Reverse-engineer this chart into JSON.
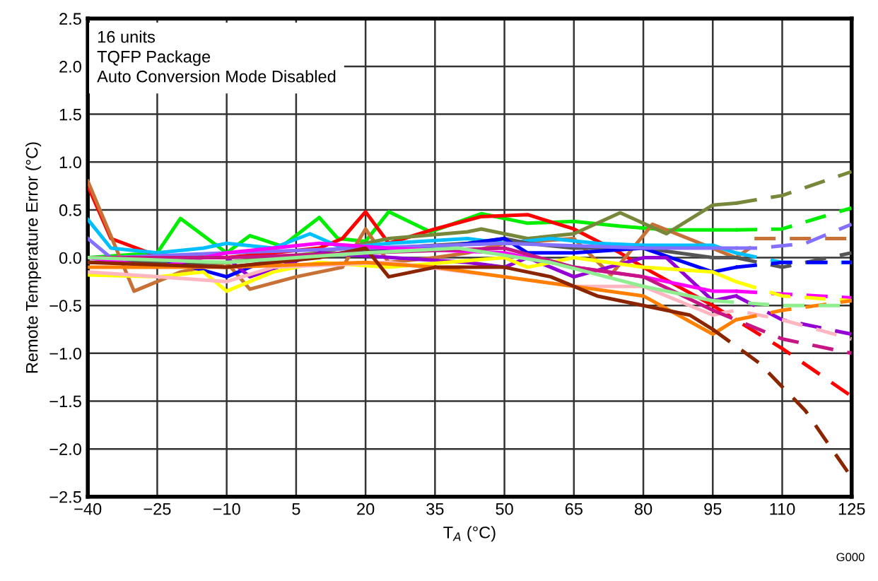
{
  "chart_data": {
    "type": "line",
    "xlabel": "T$_{A}$ (°C)",
    "ylabel": "Remote Temperature Error (°C)",
    "annotations": [
      "16 units\nTQFP Package\nAuto Conversion Mode Disabled",
      "G000"
    ],
    "xlim": [
      -40,
      125
    ],
    "ylim": [
      -2.5,
      2.5
    ],
    "xticks": [
      {
        "value": -40,
        "label": "−40"
      },
      {
        "value": -25,
        "label": "−25"
      },
      {
        "value": -10,
        "label": "−10"
      },
      5,
      20,
      35,
      50,
      65,
      80,
      95,
      110,
      125
    ],
    "yticks": [
      {
        "value": -2.5,
        "label": "−2.5"
      },
      {
        "value": -2.0,
        "label": "−2.0"
      },
      {
        "value": -1.5,
        "label": "−1.5"
      },
      {
        "value": -1.0,
        "label": "−1.0"
      },
      {
        "value": -0.5,
        "label": "−0.5"
      },
      {
        "value": 0,
        "label": "0.0"
      },
      {
        "value": 0.5,
        "label": "0.5"
      },
      {
        "value": 1.0,
        "label": "1.0"
      },
      {
        "value": 1.5,
        "label": "1.5"
      },
      {
        "value": 2.0,
        "label": "2.0"
      },
      {
        "value": 2.5,
        "label": "2.5"
      }
    ],
    "grid": true,
    "marker": "none",
    "legend": false,
    "series": [
      {
        "color": "#00ee00",
        "line_style": "solid",
        "x": [
          -40,
          -25,
          -20,
          -10,
          -5,
          2,
          10,
          14,
          20,
          25,
          34,
          45,
          55,
          65,
          75,
          85,
          100
        ],
        "values": [
          0.0,
          0.05,
          0.41,
          0.05,
          0.23,
          0.12,
          0.42,
          0.2,
          0.17,
          0.48,
          0.27,
          0.46,
          0.36,
          0.38,
          0.33,
          0.29,
          0.29
        ]
      },
      {
        "color": "#00ee00",
        "line_style": "dashed",
        "x": [
          100,
          110,
          125
        ],
        "values": [
          0.29,
          0.3,
          0.52
        ]
      },
      {
        "color": "#ff0000",
        "line_style": "solid",
        "x": [
          -40,
          -35,
          -25,
          -10,
          0,
          10,
          15,
          20,
          25,
          35,
          45,
          55,
          65,
          75,
          80,
          95
        ],
        "values": [
          0.75,
          0.2,
          0.02,
          0.0,
          0.05,
          0.1,
          0.2,
          0.48,
          0.15,
          0.3,
          0.43,
          0.45,
          0.3,
          0.05,
          -0.1,
          -0.5
        ]
      },
      {
        "color": "#ff0000",
        "line_style": "dashed",
        "x": [
          95,
          100,
          110,
          125
        ],
        "values": [
          -0.5,
          -0.65,
          -0.95,
          -1.45
        ]
      },
      {
        "color": "#c87137",
        "line_style": "solid",
        "x": [
          -40,
          -30,
          -20,
          -10,
          -5,
          5,
          15,
          20,
          25,
          35,
          42,
          50,
          65,
          73,
          82,
          100,
          103
        ],
        "values": [
          0.8,
          -0.35,
          -0.15,
          -0.05,
          -0.33,
          -0.2,
          -0.1,
          0.3,
          -0.05,
          0.0,
          0.05,
          0.15,
          0.2,
          -0.18,
          0.35,
          0.0,
          0.1
        ]
      },
      {
        "color": "#c87137",
        "line_style": "dashed",
        "x": [
          104,
          125
        ],
        "values": [
          0.2,
          0.2
        ]
      },
      {
        "color": "#77883a",
        "line_style": "solid",
        "x": [
          -40,
          -10,
          10,
          25,
          42,
          45,
          55,
          65,
          75,
          85,
          95,
          100
        ],
        "values": [
          -0.05,
          -0.05,
          0.05,
          0.2,
          0.27,
          0.3,
          0.2,
          0.25,
          0.47,
          0.25,
          0.55,
          0.57
        ]
      },
      {
        "color": "#77883a",
        "line_style": "dashed",
        "x": [
          100,
          110,
          125
        ],
        "values": [
          0.57,
          0.65,
          0.9
        ]
      },
      {
        "color": "#00bfff",
        "line_style": "solid",
        "x": [
          -40,
          -35,
          -25,
          -15,
          -10,
          0,
          8,
          15,
          25,
          42,
          50,
          60,
          70,
          80,
          95,
          100
        ],
        "values": [
          0.4,
          0.1,
          0.05,
          0.1,
          0.15,
          0.1,
          0.25,
          0.1,
          0.15,
          0.2,
          0.15,
          0.2,
          0.15,
          0.13,
          0.13,
          0.05
        ]
      },
      {
        "color": "#00bfff",
        "line_style": "dashed",
        "x": [
          100,
          110,
          125
        ],
        "values": [
          0.05,
          -0.05,
          -0.05
        ]
      },
      {
        "color": "#555555",
        "line_style": "solid",
        "x": [
          -40,
          -25,
          -10,
          0,
          15,
          25,
          42,
          50,
          55,
          65,
          80,
          95,
          100
        ],
        "values": [
          -0.05,
          -0.05,
          -0.1,
          -0.05,
          0.05,
          0.1,
          0.15,
          0.2,
          0.15,
          0.1,
          0.1,
          0.0,
          0.0
        ]
      },
      {
        "color": "#555555",
        "line_style": "dashed",
        "x": [
          100,
          110,
          125
        ],
        "values": [
          0.0,
          -0.1,
          0.05
        ]
      },
      {
        "color": "#0000ff",
        "line_style": "solid",
        "x": [
          -40,
          -25,
          -10,
          0,
          20,
          35,
          50,
          55,
          65,
          80,
          95,
          100
        ],
        "values": [
          0.0,
          0.0,
          -0.2,
          0.0,
          0.05,
          0.1,
          0.2,
          0.05,
          0.05,
          0.1,
          -0.15,
          -0.1
        ]
      },
      {
        "color": "#0000ff",
        "line_style": "dashed",
        "x": [
          100,
          110,
          125
        ],
        "values": [
          -0.1,
          -0.05,
          -0.05
        ]
      },
      {
        "color": "#8470ff",
        "line_style": "solid",
        "x": [
          -40,
          -35,
          -10,
          20,
          50,
          80,
          100
        ],
        "values": [
          0.2,
          0.0,
          0.05,
          0.1,
          0.15,
          0.1,
          0.1
        ]
      },
      {
        "color": "#8470ff",
        "line_style": "dashed",
        "x": [
          100,
          105,
          115,
          125
        ],
        "values": [
          0.1,
          0.1,
          0.15,
          0.35
        ]
      },
      {
        "color": "#9400d3",
        "line_style": "solid",
        "x": [
          -40,
          -10,
          -5,
          10,
          42,
          50,
          55,
          65,
          80,
          85,
          95,
          100
        ],
        "values": [
          0.0,
          0.0,
          -0.2,
          0.05,
          -0.05,
          -0.1,
          0.0,
          -0.2,
          0.0,
          0.0,
          -0.45,
          -0.4
        ]
      },
      {
        "color": "#9400d3",
        "line_style": "dashed",
        "x": [
          100,
          110,
          125
        ],
        "values": [
          -0.4,
          -0.65,
          -0.8
        ]
      },
      {
        "color": "#ff00ff",
        "line_style": "solid",
        "x": [
          -40,
          -25,
          -10,
          10,
          25,
          50,
          65,
          80,
          95,
          100
        ],
        "values": [
          0.0,
          -0.1,
          0.05,
          0.15,
          0.1,
          0.05,
          -0.1,
          -0.2,
          -0.35,
          -0.35
        ]
      },
      {
        "color": "#ff00ff",
        "line_style": "dashed",
        "x": [
          100,
          110,
          125
        ],
        "values": [
          -0.35,
          -0.38,
          -0.42
        ]
      },
      {
        "color": "#ffff00",
        "line_style": "solid",
        "x": [
          -40,
          -25,
          -15,
          -10,
          0,
          10,
          25,
          50,
          55,
          65,
          80,
          95,
          100
        ],
        "values": [
          -0.18,
          -0.2,
          -0.15,
          -0.35,
          -0.15,
          -0.05,
          -0.1,
          0.0,
          -0.1,
          0.0,
          -0.1,
          -0.15,
          -0.25
        ]
      },
      {
        "color": "#ffff00",
        "line_style": "dashed",
        "x": [
          100,
          110,
          125
        ],
        "values": [
          -0.25,
          -0.4,
          -0.45
        ]
      },
      {
        "color": "#ffb6c1",
        "line_style": "solid",
        "x": [
          -40,
          -25,
          -10,
          0,
          25,
          50,
          65,
          80,
          90,
          95
        ],
        "values": [
          -0.15,
          -0.2,
          -0.25,
          -0.1,
          -0.05,
          -0.2,
          -0.3,
          -0.3,
          -0.5,
          -0.6
        ]
      },
      {
        "color": "#ffb6c1",
        "line_style": "dashed",
        "x": [
          95,
          100,
          110,
          125
        ],
        "values": [
          -0.6,
          -0.55,
          -0.65,
          -0.85
        ]
      },
      {
        "color": "#ff7f00",
        "line_style": "solid",
        "x": [
          -40,
          -10,
          20,
          35,
          50,
          65,
          80,
          95,
          100
        ],
        "values": [
          -0.1,
          -0.1,
          -0.05,
          -0.1,
          -0.2,
          -0.3,
          -0.4,
          -0.8,
          -0.65
        ]
      },
      {
        "color": "#ff7f00",
        "line_style": "dashed",
        "x": [
          100,
          110,
          125
        ],
        "values": [
          -0.65,
          -0.55,
          -0.45
        ]
      },
      {
        "color": "#8b2500",
        "line_style": "solid",
        "x": [
          -40,
          -10,
          10,
          20,
          25,
          35,
          50,
          60,
          70,
          80,
          90,
          95
        ],
        "values": [
          -0.05,
          -0.1,
          0.0,
          0.1,
          -0.2,
          -0.1,
          -0.1,
          -0.2,
          -0.4,
          -0.5,
          -0.6,
          -0.75
        ]
      },
      {
        "color": "#8b2500",
        "line_style": "dashed",
        "x": [
          95,
          105,
          115,
          125
        ],
        "values": [
          -0.75,
          -1.1,
          -1.6,
          -2.3
        ]
      },
      {
        "color": "#c71585",
        "line_style": "solid",
        "x": [
          -40,
          -10,
          20,
          50,
          65,
          80,
          95
        ],
        "values": [
          0.0,
          0.0,
          0.05,
          0.1,
          -0.1,
          -0.2,
          -0.55
        ]
      },
      {
        "color": "#c71585",
        "line_style": "dashed",
        "x": [
          95,
          110,
          125
        ],
        "values": [
          -0.55,
          -0.85,
          -1.0
        ]
      },
      {
        "color": "#90ee90",
        "line_style": "solid",
        "x": [
          -40,
          -10,
          20,
          40,
          60,
          80,
          95
        ],
        "values": [
          0.0,
          -0.05,
          0.05,
          0.1,
          -0.05,
          -0.3,
          -0.45
        ]
      },
      {
        "color": "#90ee90",
        "line_style": "dashed",
        "x": [
          95,
          110,
          125
        ],
        "values": [
          -0.45,
          -0.5,
          -0.5
        ]
      }
    ]
  }
}
